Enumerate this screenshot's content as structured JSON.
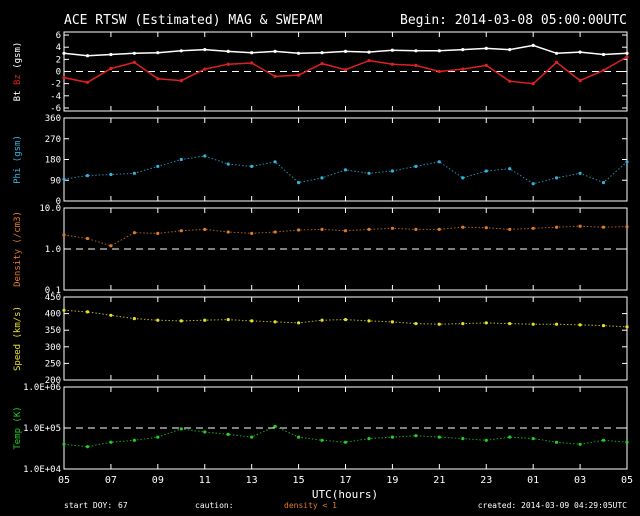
{
  "header": {
    "title": "ACE RTSW (Estimated) MAG & SWEPAM",
    "begin": "Begin: 2014-03-08 05:00:00UTC"
  },
  "footer": {
    "start_doy_label": "start DOY:",
    "start_doy_value": "67",
    "caution_label": "caution:",
    "caution_text": "density < 1",
    "created": "created: 2014-03-09 04:29:05UTC"
  },
  "colors": {
    "background": "#000000",
    "axes": "#ffffff",
    "bt": "#ffffff",
    "bz": "#dd2020",
    "phi": "#30b4e0",
    "density": "#e07a28",
    "speed": "#e8e020",
    "temp": "#20d020",
    "caution": "#e07a28"
  },
  "chart_data": [
    {
      "type": "line",
      "ylabel": "Bt Bz (gsm)",
      "ylabel_parts": [
        "Bt",
        "Bz",
        "(gsm)"
      ],
      "ylim": [
        -6.5,
        6.5
      ],
      "yticks": [
        -6,
        -4,
        -2,
        0,
        2,
        4,
        6
      ],
      "yticklabels": [
        "-6",
        "-4",
        "-2",
        "0",
        "2",
        "4",
        "6"
      ],
      "reference_line": 0,
      "x": [
        0,
        1,
        2,
        3,
        4,
        5,
        6,
        7,
        8,
        9,
        10,
        11,
        12,
        13,
        14,
        15,
        16,
        17,
        18,
        19,
        20,
        21,
        22,
        23,
        24
      ],
      "series": [
        {
          "name": "Bt",
          "values": [
            3.0,
            2.6,
            2.8,
            3.0,
            3.1,
            3.4,
            3.6,
            3.3,
            3.1,
            3.3,
            3.0,
            3.1,
            3.3,
            3.2,
            3.5,
            3.4,
            3.4,
            3.6,
            3.8,
            3.6,
            4.3,
            3.0,
            3.2,
            2.8,
            3.0
          ]
        },
        {
          "name": "Bz",
          "values": [
            -1.0,
            -1.8,
            0.5,
            1.5,
            -1.2,
            -1.5,
            0.4,
            1.2,
            1.4,
            -0.8,
            -0.6,
            1.3,
            0.3,
            1.8,
            1.2,
            1.0,
            0.0,
            0.4,
            1.0,
            -1.6,
            -2.0,
            1.5,
            -1.5,
            0.2,
            2.4
          ]
        }
      ]
    },
    {
      "type": "scatter",
      "ylabel": "Phi (gsm)",
      "ylim": [
        0,
        360
      ],
      "yticks": [
        0,
        90,
        180,
        270,
        360
      ],
      "yticklabels": [
        "0",
        "90",
        "180",
        "270",
        "360"
      ],
      "x": [
        0,
        1,
        2,
        3,
        4,
        5,
        6,
        7,
        8,
        9,
        10,
        11,
        12,
        13,
        14,
        15,
        16,
        17,
        18,
        19,
        20,
        21,
        22,
        23,
        24
      ],
      "series": [
        {
          "name": "Phi",
          "values": [
            95,
            110,
            115,
            120,
            150,
            180,
            195,
            160,
            150,
            170,
            80,
            100,
            135,
            120,
            130,
            150,
            170,
            100,
            130,
            140,
            75,
            100,
            120,
            80,
            170
          ]
        }
      ]
    },
    {
      "type": "scatter",
      "ylabel": "Density (/cm3)",
      "scale": "log",
      "ylim": [
        0.1,
        10
      ],
      "yticks": [
        0.1,
        1.0,
        10.0
      ],
      "yticklabels": [
        "0.1",
        "1.0",
        "10.0"
      ],
      "reference_line": 1.0,
      "x": [
        0,
        1,
        2,
        3,
        4,
        5,
        6,
        7,
        8,
        9,
        10,
        11,
        12,
        13,
        14,
        15,
        16,
        17,
        18,
        19,
        20,
        21,
        22,
        23,
        24
      ],
      "series": [
        {
          "name": "Density",
          "values": [
            2.2,
            1.8,
            1.2,
            2.5,
            2.4,
            2.8,
            3.0,
            2.6,
            2.4,
            2.6,
            2.9,
            3.0,
            2.8,
            3.0,
            3.2,
            3.0,
            3.0,
            3.4,
            3.3,
            3.0,
            3.2,
            3.4,
            3.6,
            3.4,
            3.5
          ]
        }
      ]
    },
    {
      "type": "scatter",
      "ylabel": "Speed (km/s)",
      "ylim": [
        200,
        450
      ],
      "yticks": [
        200,
        250,
        300,
        350,
        400,
        450
      ],
      "yticklabels": [
        "200",
        "250",
        "300",
        "350",
        "400",
        "450"
      ],
      "x": [
        0,
        1,
        2,
        3,
        4,
        5,
        6,
        7,
        8,
        9,
        10,
        11,
        12,
        13,
        14,
        15,
        16,
        17,
        18,
        19,
        20,
        21,
        22,
        23,
        24
      ],
      "series": [
        {
          "name": "Speed",
          "values": [
            410,
            405,
            395,
            385,
            380,
            378,
            380,
            382,
            378,
            375,
            372,
            380,
            382,
            378,
            375,
            370,
            368,
            370,
            372,
            370,
            368,
            368,
            366,
            364,
            360
          ]
        }
      ]
    },
    {
      "type": "scatter",
      "ylabel": "Temp (K)",
      "scale": "log",
      "ylim": [
        10000,
        1000000
      ],
      "yticks": [
        10000,
        100000,
        1000000
      ],
      "yticklabels": [
        "1.0E+04",
        "1.0E+05",
        "1.0E+06"
      ],
      "reference_line": 100000,
      "x": [
        0,
        1,
        2,
        3,
        4,
        5,
        6,
        7,
        8,
        9,
        10,
        11,
        12,
        13,
        14,
        15,
        16,
        17,
        18,
        19,
        20,
        21,
        22,
        23,
        24
      ],
      "series": [
        {
          "name": "Temp",
          "values": [
            40000,
            35000,
            45000,
            50000,
            60000,
            95000,
            80000,
            70000,
            60000,
            110000,
            60000,
            50000,
            45000,
            55000,
            60000,
            65000,
            60000,
            55000,
            50000,
            60000,
            55000,
            45000,
            40000,
            50000,
            45000
          ]
        }
      ]
    }
  ],
  "x_axis": {
    "xlabel": "UTC(hours)",
    "xlim": [
      0,
      24
    ],
    "ticks": [
      0,
      2,
      4,
      6,
      8,
      10,
      12,
      14,
      16,
      18,
      20,
      22,
      24
    ],
    "ticklabels": [
      "05",
      "07",
      "09",
      "11",
      "13",
      "15",
      "17",
      "19",
      "21",
      "23",
      "01",
      "03",
      "05"
    ]
  }
}
